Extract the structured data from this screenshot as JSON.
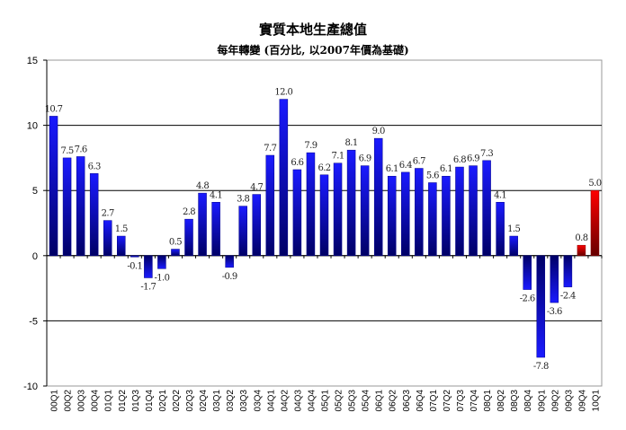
{
  "chart_data": {
    "type": "bar",
    "title": "實質本地生產總值",
    "subtitle": "每年轉變 (百分比, 以2007年價為基礎)",
    "xlabel": "",
    "ylabel": "",
    "ylim": [
      -10,
      15
    ],
    "yticks": [
      "15",
      "10",
      "5",
      "0",
      "-5",
      "-10"
    ],
    "grid": true,
    "categories": [
      "00Q1",
      "00Q2",
      "00Q3",
      "00Q4",
      "01Q1",
      "01Q2",
      "01Q3",
      "01Q4",
      "02Q1",
      "02Q2",
      "02Q3",
      "02Q4",
      "03Q1",
      "03Q2",
      "03Q3",
      "03Q4",
      "04Q1",
      "04Q2",
      "04Q3",
      "04Q4",
      "05Q1",
      "05Q2",
      "05Q3",
      "05Q4",
      "06Q1",
      "06Q2",
      "06Q3",
      "06Q4",
      "07Q1",
      "07Q2",
      "07Q3",
      "07Q4",
      "08Q1",
      "08Q2",
      "08Q3",
      "08Q4",
      "09Q1",
      "09Q2",
      "09Q3",
      "09Q4",
      "10Q1"
    ],
    "values": [
      10.7,
      7.5,
      7.6,
      6.3,
      2.7,
      1.5,
      -0.1,
      -1.7,
      -1.0,
      0.5,
      2.8,
      4.8,
      4.1,
      -0.9,
      3.8,
      4.7,
      7.7,
      12.0,
      6.6,
      7.9,
      6.2,
      7.1,
      8.1,
      6.9,
      9.0,
      6.1,
      6.4,
      6.7,
      5.6,
      6.1,
      6.8,
      6.9,
      7.3,
      4.1,
      1.5,
      -2.6,
      -7.8,
      -3.6,
      -2.4,
      0.8,
      5.0
    ],
    "labels": [
      "10.7",
      "7.5",
      "7.6",
      "6.3",
      "2.7",
      "1.5",
      "-0.1",
      "-1.7",
      "-1.0",
      "0.5",
      "2.8",
      "4.8",
      "4.1",
      "-0.9",
      "3.8",
      "4.7",
      "7.7",
      "12.0",
      "6.6",
      "7.9",
      "6.2",
      "7.1",
      "8.1",
      "6.9",
      "9.0",
      "6.1",
      "6.4",
      "6.7",
      "5.6",
      "6.1",
      "6.8",
      "6.9",
      "7.3",
      "4.1",
      "1.5",
      "-2.6",
      "-7.8",
      "-3.6",
      "-2.4",
      "0.8",
      "5.0"
    ],
    "highlight_last": 2,
    "colors": {
      "bar": "#0000ff",
      "bar_dark": "#000066",
      "highlight": "#ff0000",
      "highlight_dark": "#660000"
    }
  }
}
